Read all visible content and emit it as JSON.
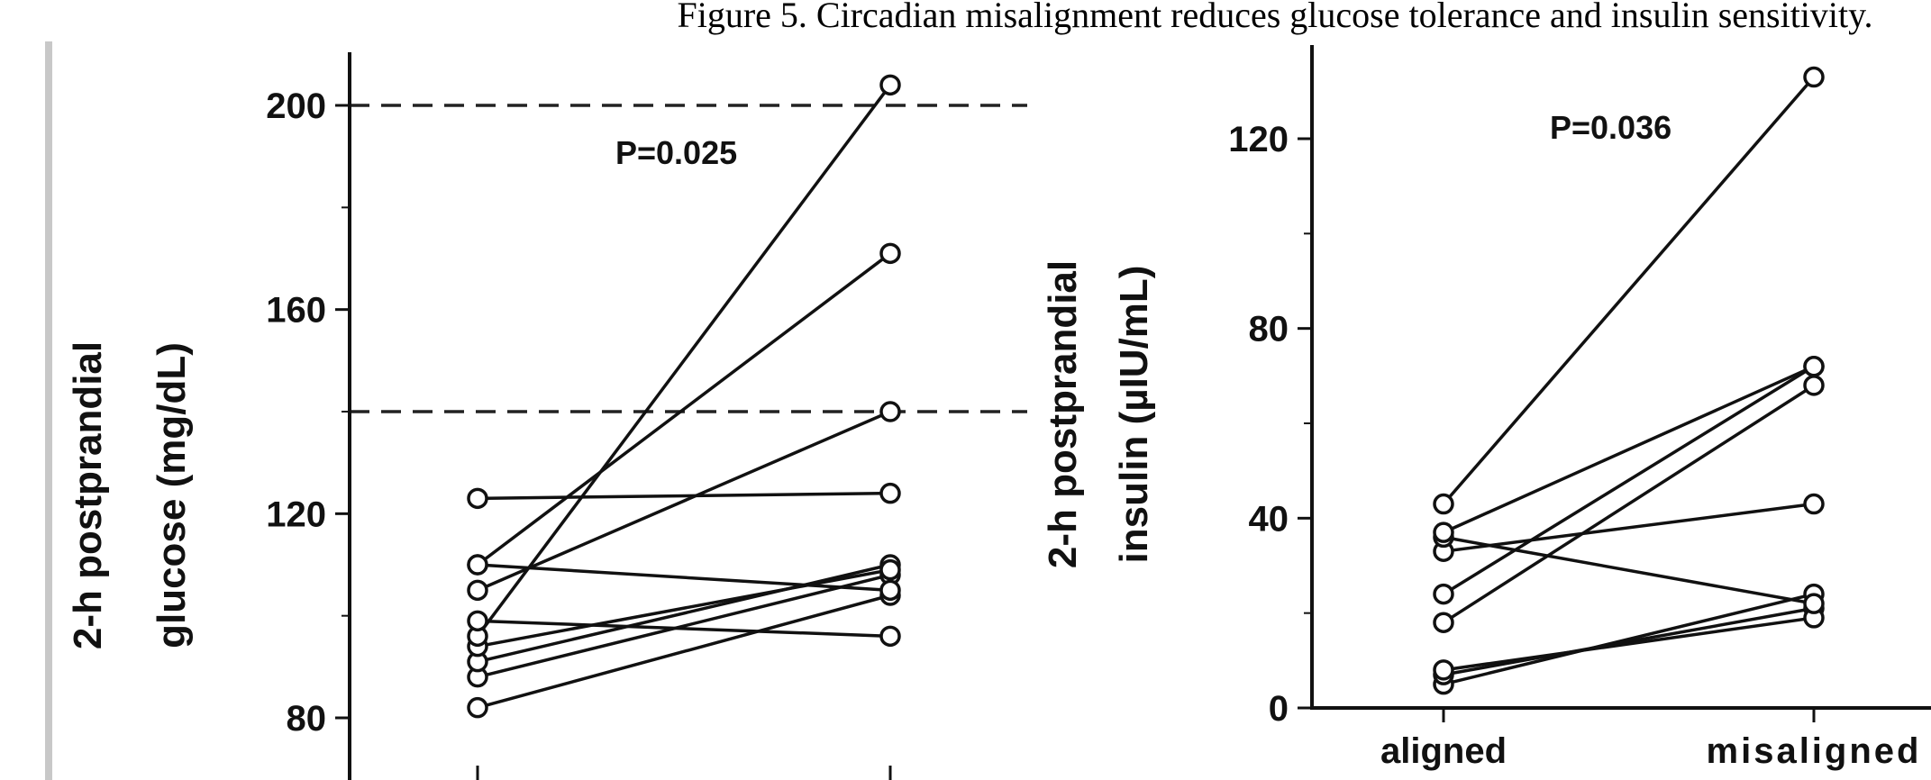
{
  "figure": {
    "caption": "Figure 5. Circadian misalignment reduces glucose tolerance and insulin sensitivity."
  },
  "chart_data": [
    {
      "type": "scatter",
      "paired": true,
      "categories": [
        "aligned",
        "misaligned"
      ],
      "ylabel_line1": "2-h postprandial",
      "ylabel_line2": "glucose (mg/dL)",
      "ylim": [
        75,
        210
      ],
      "yticks": [
        80,
        120,
        160,
        200
      ],
      "reference_lines": [
        200,
        140
      ],
      "annotation": "P=0.025",
      "grid": false,
      "show_category_labels": false,
      "pairs": [
        [
          82,
          104
        ],
        [
          88,
          108
        ],
        [
          91,
          110
        ],
        [
          94,
          109
        ],
        [
          96,
          204
        ],
        [
          99,
          96
        ],
        [
          105,
          140
        ],
        [
          110,
          171
        ],
        [
          110,
          105
        ],
        [
          123,
          124
        ]
      ]
    },
    {
      "type": "scatter",
      "paired": true,
      "categories": [
        "aligned",
        "misaligned"
      ],
      "ylabel_line1": "2-h postprandial",
      "ylabel_line2": "insulin (µIU/mL)",
      "ylim": [
        0,
        138
      ],
      "yticks": [
        0,
        40,
        80,
        120
      ],
      "annotation": "P=0.036",
      "grid": false,
      "show_category_labels": true,
      "pairs": [
        [
          5,
          24
        ],
        [
          7,
          21
        ],
        [
          8,
          19
        ],
        [
          18,
          68
        ],
        [
          24,
          72
        ],
        [
          33,
          43
        ],
        [
          36,
          22
        ],
        [
          37,
          72
        ],
        [
          43,
          133
        ]
      ]
    }
  ]
}
